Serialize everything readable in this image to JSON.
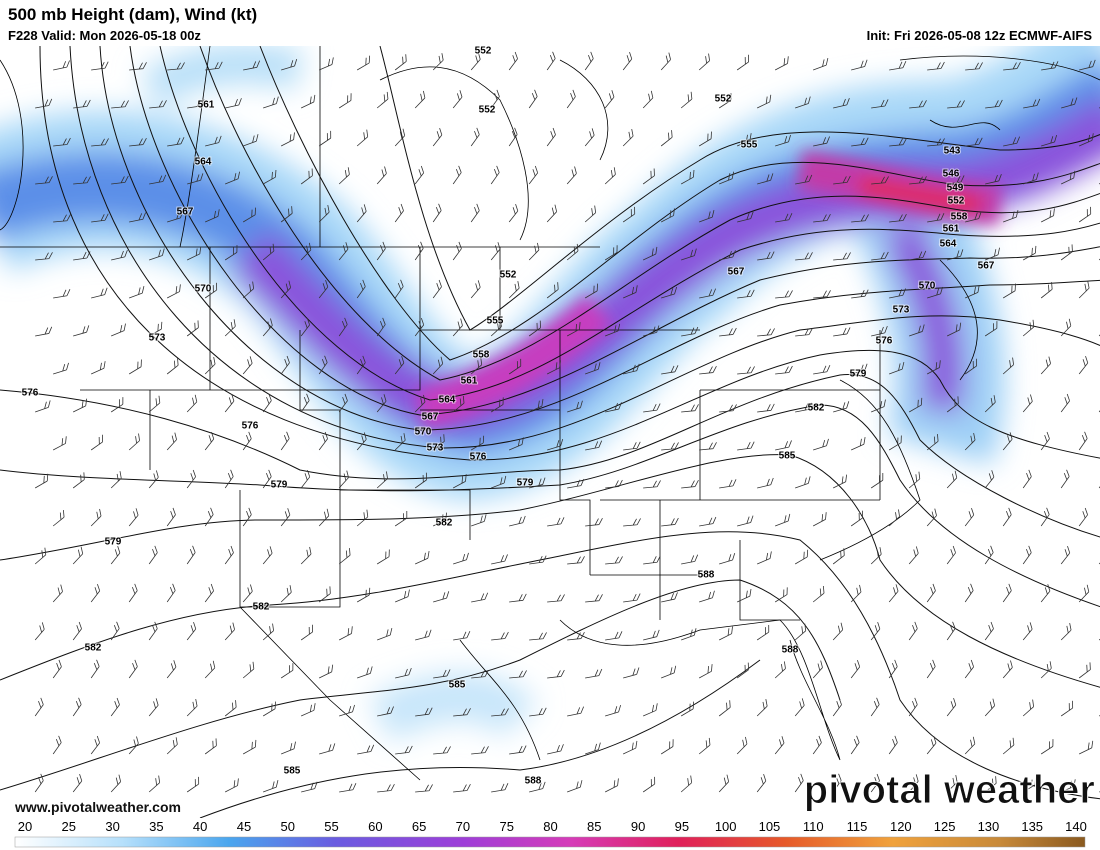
{
  "header": {
    "title": "500 mb Height (dam), Wind (kt)",
    "valid": "F228 Valid: Mon 2026-05-18 00z",
    "init": "Init: Fri 2026-05-08 12z ECMWF-AIFS"
  },
  "map": {
    "contour_labels": [
      "552",
      "552",
      "552",
      "555",
      "561",
      "564",
      "567",
      "570",
      "573",
      "576",
      "576",
      "579",
      "579",
      "582",
      "582",
      "582",
      "585",
      "585",
      "588",
      "588",
      "588",
      "585",
      "582",
      "579",
      "576",
      "573",
      "570",
      "567",
      "567",
      "564",
      "561",
      "558",
      "552",
      "549",
      "546",
      "543",
      "552",
      "555",
      "558",
      "561",
      "564",
      "567",
      "570",
      "573",
      "576",
      "579"
    ]
  },
  "footer": {
    "url": "www.pivotalweather.com",
    "brand": "pivotal weather"
  },
  "colorbar": {
    "labels": [
      20,
      25,
      30,
      35,
      40,
      45,
      50,
      55,
      60,
      65,
      70,
      75,
      80,
      85,
      90,
      95,
      100,
      105,
      110,
      115,
      120,
      125,
      130,
      135,
      140
    ]
  }
}
